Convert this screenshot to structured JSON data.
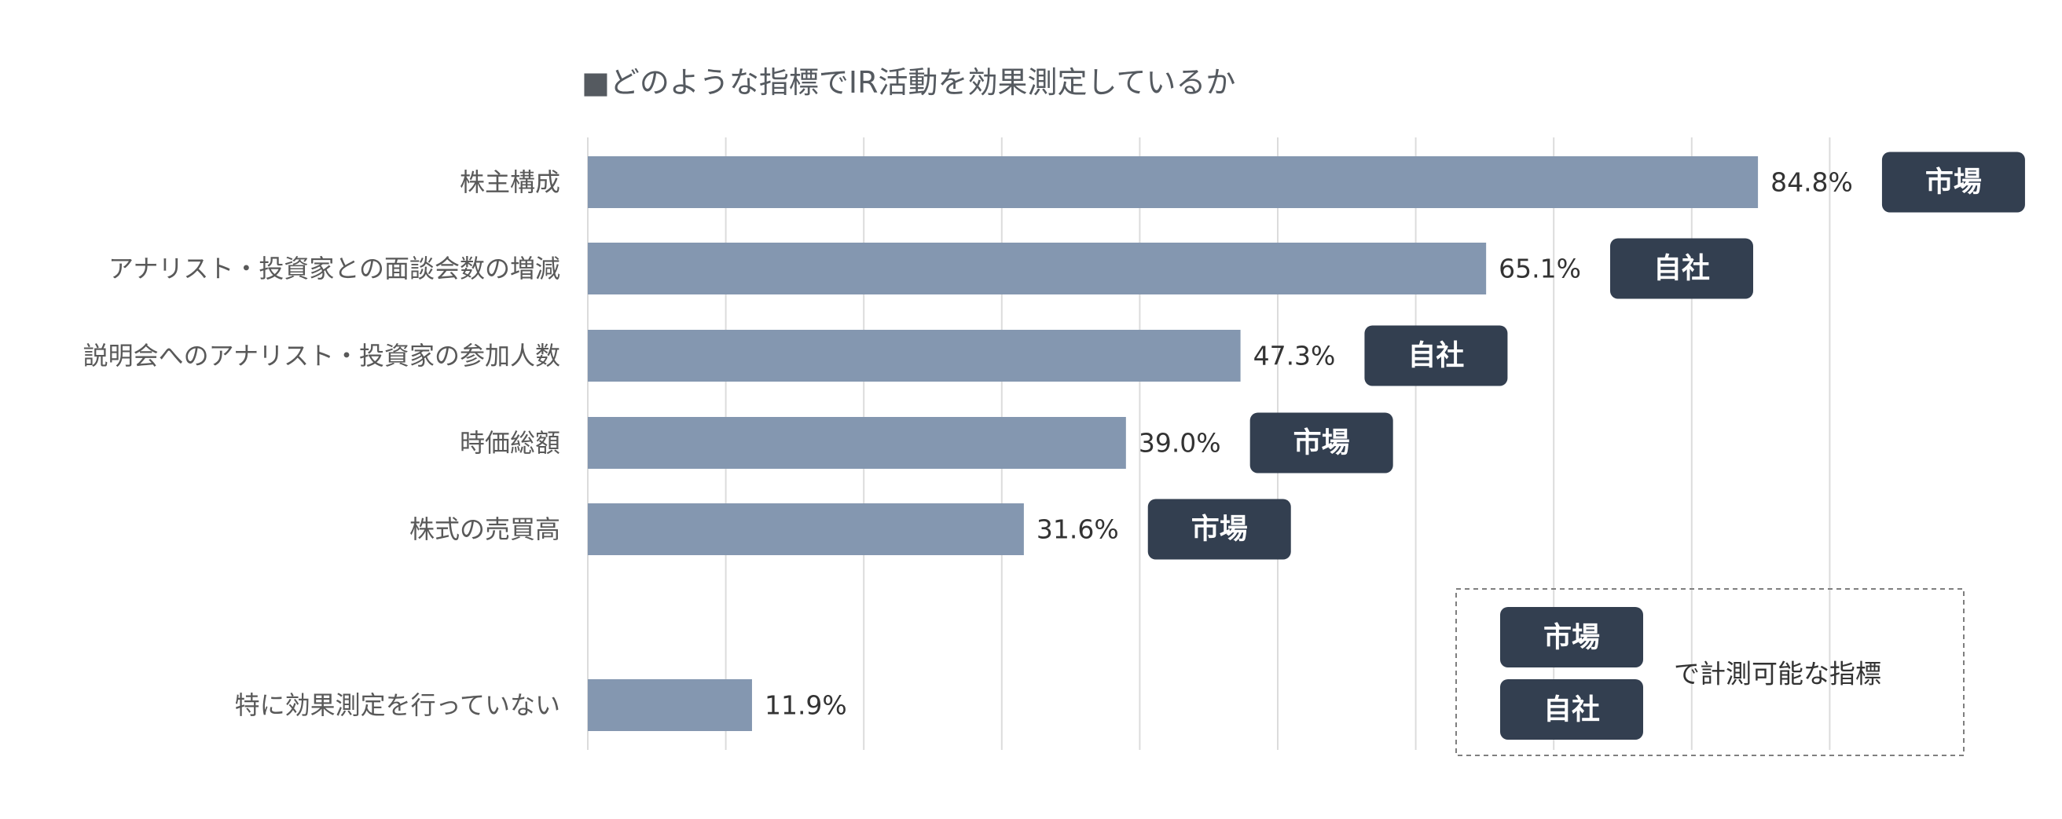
{
  "chart_data": {
    "type": "bar",
    "orientation": "horizontal",
    "title": "■どのような指標でIR活動を効果測定しているか",
    "xlim": [
      0,
      90
    ],
    "grid": true,
    "bar_color": "#8497b0",
    "badge_color": "#333f50",
    "categories": [
      "株主構成",
      "アナリスト・投資家との面談会数の増減",
      "説明会へのアナリスト・投資家の参加人数",
      "時価総額",
      "株式の売買高",
      "特に効果測定を行っていない"
    ],
    "values": [
      84.8,
      65.1,
      47.3,
      39.0,
      31.6,
      11.9
    ],
    "value_labels": [
      "84.8%",
      "65.1%",
      "47.3%",
      "39.0%",
      "31.6%",
      "11.9%"
    ],
    "badges": [
      "市場",
      "自社",
      "自社",
      "市場",
      "市場",
      null
    ],
    "legend": {
      "badges": [
        "市場",
        "自社"
      ],
      "text": "で計測可能な指標",
      "placement": "bottom-right"
    }
  }
}
